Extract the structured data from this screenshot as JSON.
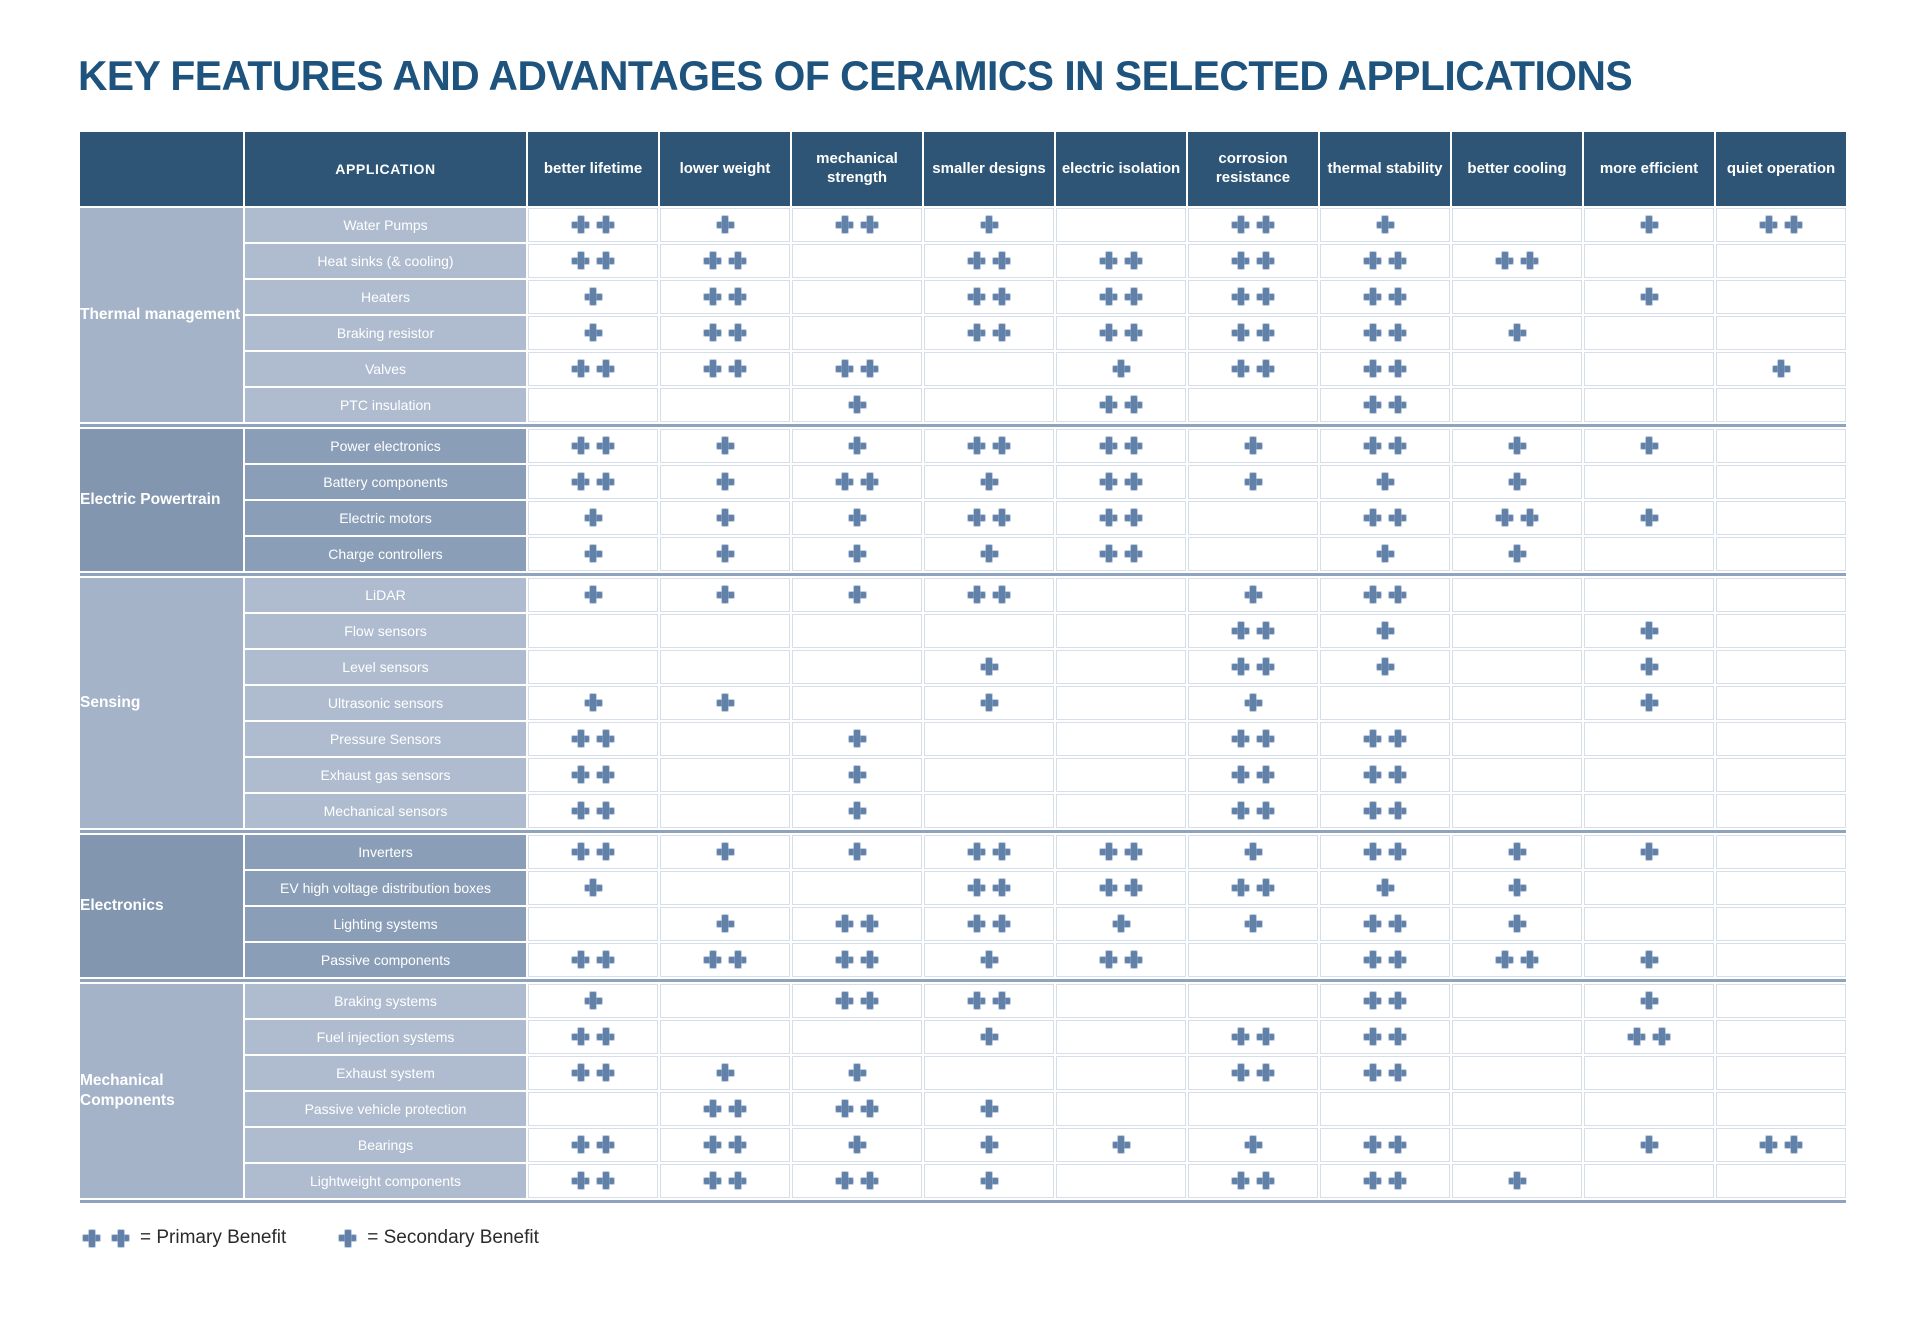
{
  "title": "KEY FEATURES AND ADVANTAGES OF CERAMICS IN SELECTED APPLICATIONS",
  "legend": {
    "primary_label": "= Primary Benefit",
    "secondary_label": "= Secondary Benefit"
  },
  "colors": {
    "title": "#1E537E",
    "header_bg": "#2E5575",
    "group_light": "#A4B3C8",
    "app_light": "#AFBCCF",
    "group_dark": "#8296B0",
    "app_dark": "#8B9EB7",
    "plus": "#6181A9",
    "separator": "#8FA3BC",
    "cell_border": "#D6DEE9"
  },
  "chart_data": {
    "type": "table",
    "title": "KEY FEATURES AND ADVANTAGES OF CERAMICS IN SELECTED APPLICATIONS",
    "corner_header": "",
    "application_header": "APPLICATION",
    "feature_columns": [
      "better lifetime",
      "lower weight",
      "mechanical strength",
      "smaller designs",
      "electric isolation",
      "corrosion resistance",
      "thermal stability",
      "better cooling",
      "more efficient",
      "quiet operation"
    ],
    "value_legend": {
      "++": "Primary Benefit",
      "+": "Secondary Benefit",
      "": "no benefit marked"
    },
    "row_groups": [
      {
        "group": "Thermal management",
        "shade": "light",
        "rows": [
          {
            "application": "Water Pumps",
            "values": [
              "++",
              "+",
              "++",
              "+",
              "",
              "++",
              "+",
              "",
              "+",
              "++"
            ]
          },
          {
            "application": "Heat sinks (& cooling)",
            "values": [
              "++",
              "++",
              "",
              "++",
              "++",
              "++",
              "++",
              "++",
              "",
              ""
            ]
          },
          {
            "application": "Heaters",
            "values": [
              "+",
              "++",
              "",
              "++",
              "++",
              "++",
              "++",
              "",
              "+",
              ""
            ]
          },
          {
            "application": "Braking resistor",
            "values": [
              "+",
              "++",
              "",
              "++",
              "++",
              "++",
              "++",
              "+",
              "",
              ""
            ]
          },
          {
            "application": "Valves",
            "values": [
              "++",
              "++",
              "++",
              "",
              "+",
              "++",
              "++",
              "",
              "",
              "+"
            ]
          },
          {
            "application": "PTC insulation",
            "values": [
              "",
              "",
              "+",
              "",
              "++",
              "",
              "++",
              "",
              "",
              ""
            ]
          }
        ]
      },
      {
        "group": "Electric Powertrain",
        "shade": "dark",
        "rows": [
          {
            "application": "Power electronics",
            "values": [
              "++",
              "+",
              "+",
              "++",
              "++",
              "+",
              "++",
              "+",
              "+",
              ""
            ]
          },
          {
            "application": "Battery components",
            "values": [
              "++",
              "+",
              "++",
              "+",
              "++",
              "+",
              "+",
              "+",
              "",
              ""
            ]
          },
          {
            "application": "Electric motors",
            "values": [
              "+",
              "+",
              "+",
              "++",
              "++",
              "",
              "++",
              "++",
              "+",
              ""
            ]
          },
          {
            "application": "Charge controllers",
            "values": [
              "+",
              "+",
              "+",
              "+",
              "++",
              "",
              "+",
              "+",
              "",
              ""
            ]
          }
        ]
      },
      {
        "group": "Sensing",
        "shade": "light",
        "rows": [
          {
            "application": "LiDAR",
            "values": [
              "+",
              "+",
              "+",
              "++",
              "",
              "+",
              "++",
              "",
              "",
              ""
            ]
          },
          {
            "application": "Flow sensors",
            "values": [
              "",
              "",
              "",
              "",
              "",
              "++",
              "+",
              "",
              "+",
              ""
            ]
          },
          {
            "application": "Level sensors",
            "values": [
              "",
              "",
              "",
              "+",
              "",
              "++",
              "+",
              "",
              "+",
              ""
            ]
          },
          {
            "application": "Ultrasonic sensors",
            "values": [
              "+",
              "+",
              "",
              "+",
              "",
              "+",
              "",
              "",
              "+",
              ""
            ]
          },
          {
            "application": "Pressure Sensors",
            "values": [
              "++",
              "",
              "+",
              "",
              "",
              "++",
              "++",
              "",
              "",
              ""
            ]
          },
          {
            "application": "Exhaust gas sensors",
            "values": [
              "++",
              "",
              "+",
              "",
              "",
              "++",
              "++",
              "",
              "",
              ""
            ]
          },
          {
            "application": "Mechanical sensors",
            "values": [
              "++",
              "",
              "+",
              "",
              "",
              "++",
              "++",
              "",
              "",
              ""
            ]
          }
        ]
      },
      {
        "group": "Electronics",
        "shade": "dark",
        "rows": [
          {
            "application": "Inverters",
            "values": [
              "++",
              "+",
              "+",
              "++",
              "++",
              "+",
              "++",
              "+",
              "+",
              ""
            ]
          },
          {
            "application": "EV high voltage distribution boxes",
            "values": [
              "+",
              "",
              "",
              "++",
              "++",
              "++",
              "+",
              "+",
              "",
              ""
            ]
          },
          {
            "application": "Lighting systems",
            "values": [
              "",
              "+",
              "++",
              "++",
              "+",
              "+",
              "++",
              "+",
              "",
              ""
            ]
          },
          {
            "application": "Passive components",
            "values": [
              "++",
              "++",
              "++",
              "+",
              "++",
              "",
              "++",
              "++",
              "+",
              ""
            ]
          }
        ]
      },
      {
        "group": "Mechanical Components",
        "shade": "light",
        "rows": [
          {
            "application": "Braking systems",
            "values": [
              "+",
              "",
              "++",
              "++",
              "",
              "",
              "++",
              "",
              "+",
              ""
            ]
          },
          {
            "application": "Fuel injection systems",
            "values": [
              "++",
              "",
              "",
              "+",
              "",
              "++",
              "++",
              "",
              "++",
              ""
            ]
          },
          {
            "application": "Exhaust system",
            "values": [
              "++",
              "+",
              "+",
              "",
              "",
              "++",
              "++",
              "",
              "",
              ""
            ]
          },
          {
            "application": "Passive vehicle protection",
            "values": [
              "",
              "++",
              "++",
              "+",
              "",
              "",
              "",
              "",
              "",
              ""
            ]
          },
          {
            "application": "Bearings",
            "values": [
              "++",
              "++",
              "+",
              "+",
              "+",
              "+",
              "++",
              "",
              "+",
              "++"
            ]
          },
          {
            "application": "Lightweight components",
            "values": [
              "++",
              "++",
              "++",
              "+",
              "",
              "++",
              "++",
              "+",
              "",
              ""
            ]
          }
        ]
      }
    ]
  }
}
